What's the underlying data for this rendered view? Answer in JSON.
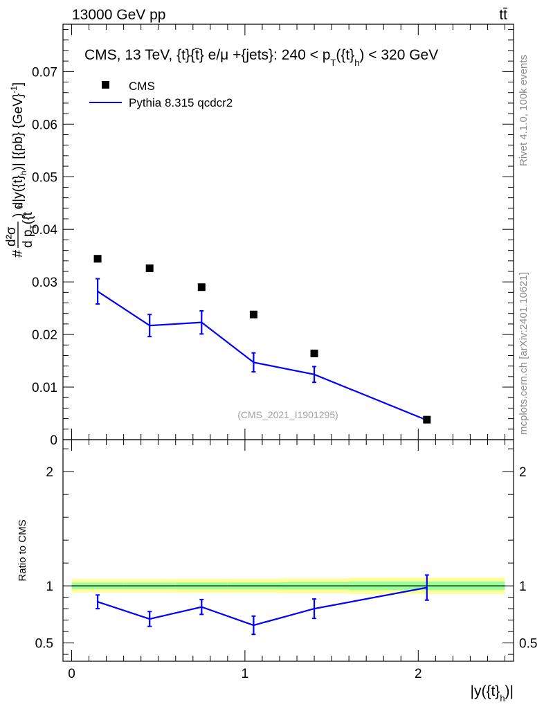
{
  "header": {
    "left": "13000 GeV pp",
    "right": "tt̄"
  },
  "side_labels": {
    "rivet": "Rivet 4.1.0,  100k events",
    "mcplots": "mcplots.cern.ch [arXiv:2401.10621]"
  },
  "chart_data": [
    {
      "type": "scatter",
      "panel": "main",
      "title": "CMS, 13 TeV, {t}{t̄} e/μ +{jets}: 240 <  p_T({t}_h) < 320 GeV",
      "title_parts": {
        "prefix": "CMS, 13 TeV, {t}{t̄} e/μ +{jets}: 240 <  p",
        "sub_T": "T",
        "mid": "({t}",
        "sub_h": "h",
        "suffix": ") < 320 GeV"
      },
      "ylabel_parts": {
        "hash": "#",
        "frac_num": "d²σ",
        "frac_den": "d p",
        "frac_den_sub": "T",
        "frac_den_rest": "({t",
        "frac_den_sub2": "h",
        "rest": ") d|y({t}",
        "rest_sub": "h",
        "units": ")| [{pb} {GeV}",
        "units_sup": "-1",
        "close": "]"
      },
      "ylim": [
        0,
        0.079
      ],
      "yticks": [
        0,
        0.01,
        0.02,
        0.03,
        0.04,
        0.05,
        0.06,
        0.07
      ],
      "ytick_labels": [
        "0",
        "0.01",
        "0.02",
        "0.03",
        "0.04",
        "0.05",
        "0.06",
        "0.07"
      ],
      "xlim": [
        -0.05,
        2.55
      ],
      "series": [
        {
          "name": "CMS",
          "style": "markers",
          "color": "#000000",
          "x": [
            0.15,
            0.45,
            0.75,
            1.05,
            1.4,
            2.05
          ],
          "y": [
            0.0344,
            0.0326,
            0.029,
            0.0238,
            0.0164,
            0.0038
          ]
        },
        {
          "name": "Pythia 8.315 qcdcr2",
          "style": "line",
          "color": "#0000ff",
          "x": [
            0.15,
            0.45,
            0.75,
            1.05,
            1.4,
            2.05
          ],
          "y": [
            0.0282,
            0.0217,
            0.0223,
            0.0147,
            0.0124,
            0.0037
          ],
          "yerr": [
            0.0024,
            0.0021,
            0.0022,
            0.0018,
            0.0015,
            0.0004
          ]
        }
      ],
      "annotation": "(CMS_2021_I1901295)"
    },
    {
      "type": "line",
      "panel": "ratio",
      "ylabel": "Ratio to CMS",
      "xlabel_parts": {
        "main": "|y({t}",
        "sub": "h",
        "close": ")|"
      },
      "ylim": [
        0.34,
        2.28
      ],
      "yticks": [
        0.5,
        1,
        2
      ],
      "ytick_labels": [
        "0.5",
        "1",
        "2"
      ],
      "xlim": [
        -0.05,
        2.55
      ],
      "xticks": [
        0,
        1,
        2
      ],
      "xtick_labels": [
        "0",
        "1",
        "2"
      ],
      "bands": {
        "bin_edges": [
          0.0,
          0.3,
          0.6,
          0.9,
          1.2,
          1.6,
          2.5
        ],
        "yellow_halfwidth": [
          0.058,
          0.058,
          0.062,
          0.062,
          0.065,
          0.072
        ],
        "green_halfwidth": [
          0.028,
          0.028,
          0.03,
          0.03,
          0.032,
          0.038
        ],
        "yellow_color": "#ffff99",
        "green_color": "#99ff99"
      },
      "series": [
        {
          "name": "Pythia 8.315 qcdcr2",
          "color": "#0000ff",
          "x": [
            0.15,
            0.45,
            0.75,
            1.05,
            1.4,
            2.05
          ],
          "y": [
            0.86,
            0.71,
            0.815,
            0.655,
            0.8,
            0.985
          ],
          "yerr": [
            0.06,
            0.065,
            0.065,
            0.08,
            0.085,
            0.11
          ]
        }
      ]
    }
  ]
}
